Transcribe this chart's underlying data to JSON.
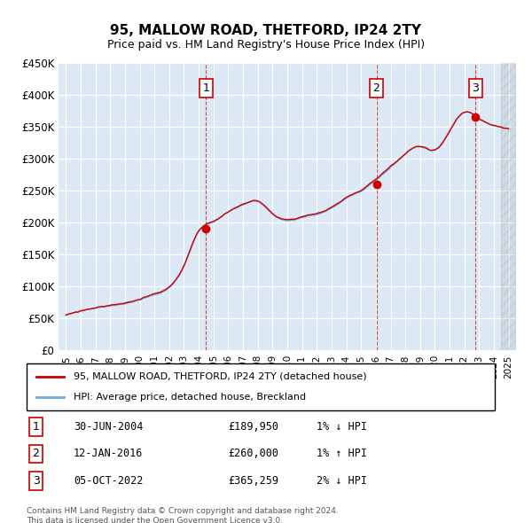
{
  "title": "95, MALLOW ROAD, THETFORD, IP24 2TY",
  "subtitle": "Price paid vs. HM Land Registry's House Price Index (HPI)",
  "ylabel": "",
  "xlabel": "",
  "ylim": [
    0,
    450000
  ],
  "yticks": [
    0,
    50000,
    100000,
    150000,
    200000,
    250000,
    300000,
    350000,
    400000,
    450000
  ],
  "ytick_labels": [
    "£0",
    "£50K",
    "£100K",
    "£150K",
    "£200K",
    "£250K",
    "£300K",
    "£350K",
    "£400K",
    "£450K"
  ],
  "xlim_start": 1994.5,
  "xlim_end": 2025.5,
  "background_color": "#dce9f5",
  "plot_bg_color": "#dce9f5",
  "hpi_color": "#6fa8d6",
  "price_color": "#cc0000",
  "sale_marker_color": "#cc0000",
  "hatch_color": "#c0c0c0",
  "grid_color": "#ffffff",
  "sale_points": [
    {
      "year": 2004.5,
      "price": 189950,
      "label": "1"
    },
    {
      "year": 2016.04,
      "price": 260000,
      "label": "2"
    },
    {
      "year": 2022.75,
      "price": 365259,
      "label": "3"
    }
  ],
  "legend_entries": [
    "95, MALLOW ROAD, THETFORD, IP24 2TY (detached house)",
    "HPI: Average price, detached house, Breckland"
  ],
  "table_rows": [
    [
      "1",
      "30-JUN-2004",
      "£189,950",
      "1% ↓ HPI"
    ],
    [
      "2",
      "12-JAN-2016",
      "£260,000",
      "1% ↑ HPI"
    ],
    [
      "3",
      "05-OCT-2022",
      "£365,259",
      "2% ↓ HPI"
    ]
  ],
  "footer": "Contains HM Land Registry data © Crown copyright and database right 2024.\nThis data is licensed under the Open Government Licence v3.0.",
  "xtick_years": [
    1995,
    1996,
    1997,
    1998,
    1999,
    2000,
    2001,
    2002,
    2003,
    2004,
    2005,
    2006,
    2007,
    2008,
    2009,
    2010,
    2011,
    2012,
    2013,
    2014,
    2015,
    2016,
    2017,
    2018,
    2019,
    2020,
    2021,
    2022,
    2023,
    2024,
    2025
  ]
}
